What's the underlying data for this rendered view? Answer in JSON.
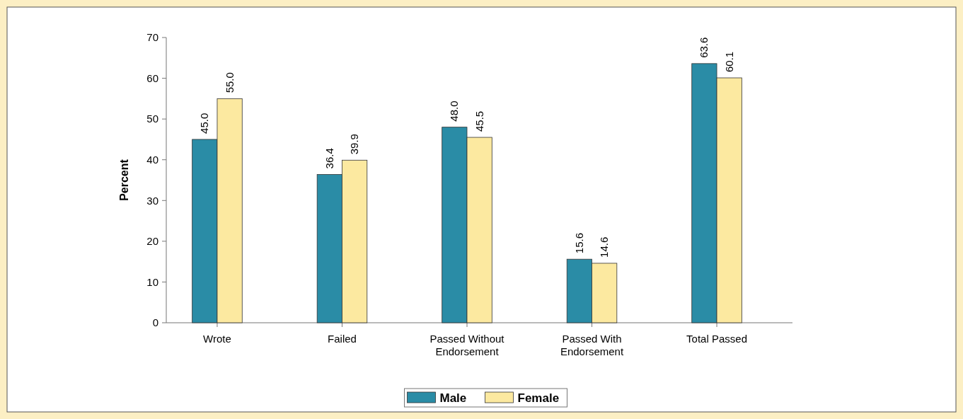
{
  "chart_data": {
    "type": "bar",
    "ylabel": "Percent",
    "categories": [
      "Wrote",
      "Failed",
      "Passed Without Endorsement",
      "Passed With Endorsement",
      "Total Passed"
    ],
    "series": [
      {
        "name": "Male",
        "color": "#2a8ca6",
        "values": [
          45.0,
          36.4,
          48.0,
          15.6,
          63.6
        ],
        "value_labels": [
          "45.0",
          "36.4",
          "48.0",
          "15.6",
          "63.6"
        ]
      },
      {
        "name": "Female",
        "color": "#fce9a0",
        "values": [
          55.0,
          39.9,
          45.5,
          14.6,
          60.1
        ],
        "value_labels": [
          "55.0",
          "39.9",
          "45.5",
          "14.6",
          "60.1"
        ]
      }
    ],
    "ylim": [
      0,
      70
    ],
    "yticks": [
      0,
      10,
      20,
      30,
      40,
      50,
      60,
      70
    ],
    "legend": "bottom",
    "grid": false
  }
}
